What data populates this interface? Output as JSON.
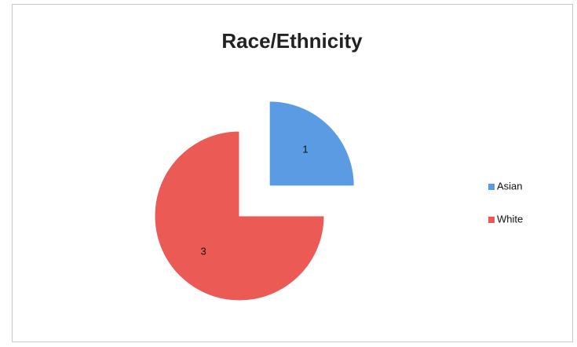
{
  "chart_data": {
    "type": "pie",
    "title": "Race/Ethnicity",
    "categories": [
      "Asian",
      "White"
    ],
    "values": [
      1,
      3
    ],
    "colors": [
      "#5b9be3",
      "#ec5a56"
    ],
    "legend": "right"
  }
}
